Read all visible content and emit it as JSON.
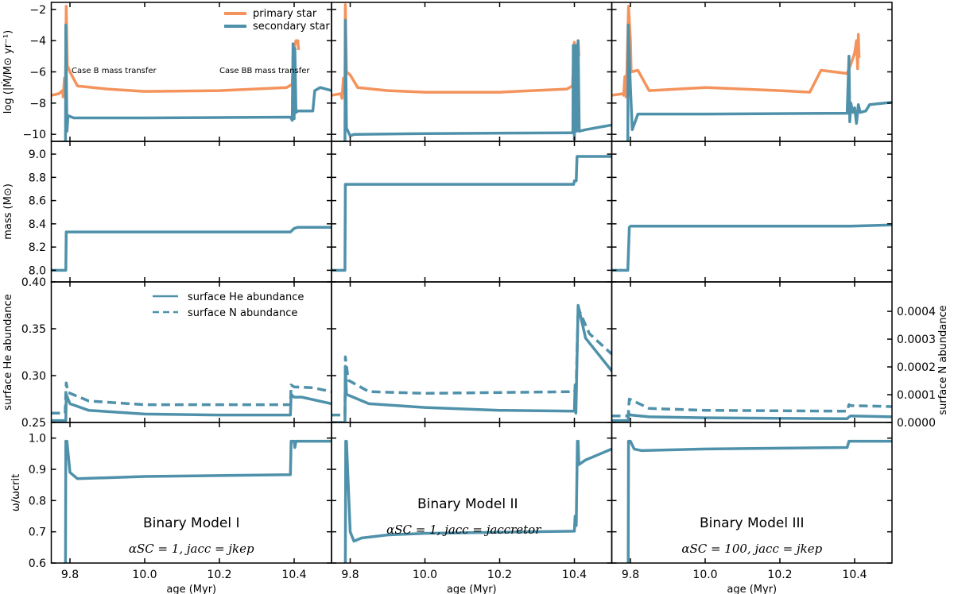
{
  "colors": {
    "primary": "#f4935c",
    "secondary": "#4f91aa"
  },
  "chart_data": {
    "type": "line",
    "layout": "4 rows x 3 columns, shared x axis",
    "xlabel": "age (Myr)",
    "xlim": [
      9.75,
      10.5
    ],
    "xticks": [
      9.8,
      10.0,
      10.2,
      10.4
    ],
    "xtick_labels": [
      "9.8",
      "10.0",
      "10.2",
      "10.4"
    ],
    "rows": [
      {
        "key": "mdot",
        "ylabel": "log (|Ṁ/M⊙ yr⁻¹)",
        "ylim": [
          -10.45,
          -1.55
        ],
        "yticks": [
          -2,
          -4,
          -6,
          -8,
          -10
        ],
        "ytick_labels": [
          "−2",
          "−4",
          "−6",
          "−8",
          "−10"
        ]
      },
      {
        "key": "mass",
        "ylabel": "mass (M⊙)",
        "ylim": [
          7.9,
          9.11
        ],
        "yticks": [
          8.0,
          8.2,
          8.4,
          8.6,
          8.8,
          9.0
        ],
        "ytick_labels": [
          "8.0",
          "8.2",
          "8.4",
          "8.6",
          "8.8",
          "9.0"
        ]
      },
      {
        "key": "abund",
        "ylabel": "surface He abundance",
        "ylim": [
          0.25,
          0.4
        ],
        "yticks": [
          0.25,
          0.3,
          0.35,
          0.4
        ],
        "ytick_labels": [
          "0.25",
          "0.30",
          "0.35",
          "0.40"
        ],
        "ylabel_right": "surface N abundance",
        "ylim_right": [
          0,
          0.000506
        ],
        "yticks_right": [
          0,
          0.0001,
          0.0002,
          0.0003,
          0.0004
        ],
        "ytick_labels_right": [
          "0.0000",
          "0.0001",
          "0.0002",
          "0.0003",
          "0.0004"
        ]
      },
      {
        "key": "omega",
        "ylabel": "ω/ωcrit",
        "ylim": [
          0.6,
          1.05
        ],
        "yticks": [
          0.6,
          0.7,
          0.8,
          0.9,
          1.0
        ],
        "ytick_labels": [
          "0.6",
          "0.7",
          "0.8",
          "0.9",
          "1.0"
        ]
      }
    ],
    "legend_mdot": {
      "position": "top-right",
      "primary": "primary star",
      "secondary": "secondary star"
    },
    "legend_abund": {
      "position": "top-right",
      "he": "surface He abundance",
      "n": "surface N abundance"
    },
    "annotations": [
      "Case B mass transfer",
      "Case BB mass transfer"
    ],
    "models": [
      {
        "title": "Binary Model I",
        "params": "αSC = 1, jacc = jkep",
        "mdot_primary": [
          [
            9.75,
            -7.5
          ],
          [
            9.77,
            -7.4
          ],
          [
            9.78,
            -7.2
          ],
          [
            9.782,
            -7.6
          ],
          [
            9.785,
            -6.4
          ],
          [
            9.788,
            -7.0
          ],
          [
            9.79,
            -1.8
          ],
          [
            9.793,
            -5.6
          ],
          [
            9.8,
            -6.0
          ],
          [
            9.82,
            -6.9
          ],
          [
            9.9,
            -7.1
          ],
          [
            10.0,
            -7.25
          ],
          [
            10.2,
            -7.2
          ],
          [
            10.38,
            -7.0
          ],
          [
            10.395,
            -6.8
          ],
          [
            10.398,
            -5.0
          ],
          [
            10.4,
            -4.5
          ],
          [
            10.405,
            -4.0
          ],
          [
            10.41,
            -4.0
          ],
          [
            10.412,
            -4.6
          ]
        ],
        "mdot_secondary": [
          [
            9.75,
            -10.5
          ],
          [
            9.788,
            -10.5
          ],
          [
            9.789,
            -3.0
          ],
          [
            9.792,
            -9.8
          ],
          [
            9.795,
            -8.8
          ],
          [
            9.81,
            -8.95
          ],
          [
            10.0,
            -8.95
          ],
          [
            10.39,
            -8.9
          ],
          [
            10.395,
            -9.1
          ],
          [
            10.397,
            -4.2
          ],
          [
            10.4,
            -9.0
          ],
          [
            10.402,
            -4.5
          ],
          [
            10.405,
            -8.6
          ],
          [
            10.41,
            -8.5
          ],
          [
            10.45,
            -8.5
          ],
          [
            10.455,
            -7.2
          ],
          [
            10.47,
            -7.0
          ],
          [
            10.5,
            -7.2
          ]
        ],
        "mass": [
          [
            9.75,
            8.0
          ],
          [
            9.789,
            8.0
          ],
          [
            9.79,
            8.33
          ],
          [
            10.39,
            8.33
          ],
          [
            10.4,
            8.36
          ],
          [
            10.41,
            8.37
          ],
          [
            10.5,
            8.37
          ]
        ],
        "he": [
          [
            9.75,
            0.252
          ],
          [
            9.789,
            0.252
          ],
          [
            9.79,
            0.28
          ],
          [
            9.8,
            0.27
          ],
          [
            9.85,
            0.263
          ],
          [
            10.0,
            0.259
          ],
          [
            10.2,
            0.258
          ],
          [
            10.39,
            0.258
          ],
          [
            10.392,
            0.28
          ],
          [
            10.4,
            0.277
          ],
          [
            10.42,
            0.277
          ],
          [
            10.5,
            0.27
          ]
        ],
        "n": [
          [
            9.75,
            3.37e-05
          ],
          [
            9.787,
            3.37e-05
          ],
          [
            9.79,
            0.000142
          ],
          [
            9.795,
            0.000108
          ],
          [
            9.85,
            7.76e-05
          ],
          [
            10.0,
            6.41e-05
          ],
          [
            10.39,
            6.41e-05
          ],
          [
            10.392,
            0.000135
          ],
          [
            10.4,
            0.000128
          ],
          [
            10.45,
            0.000125
          ],
          [
            10.5,
            0.000111
          ]
        ],
        "omega": [
          [
            9.788,
            0.6
          ],
          [
            9.789,
            0.99
          ],
          [
            9.792,
            0.99
          ],
          [
            9.8,
            0.89
          ],
          [
            9.82,
            0.87
          ],
          [
            10.0,
            0.877
          ],
          [
            10.39,
            0.883
          ],
          [
            10.392,
            0.99
          ],
          [
            10.4,
            0.99
          ],
          [
            10.402,
            0.97
          ],
          [
            10.405,
            0.99
          ],
          [
            10.5,
            0.99
          ]
        ]
      },
      {
        "title": "Binary Model II",
        "params": "αSC = 1, jacc = jaccretor",
        "mdot_primary": [
          [
            9.75,
            -7.5
          ],
          [
            9.775,
            -7.4
          ],
          [
            9.778,
            -7.7
          ],
          [
            9.782,
            -6.4
          ],
          [
            9.786,
            -6.6
          ],
          [
            9.787,
            -1.7
          ],
          [
            9.79,
            -6.0
          ],
          [
            9.8,
            -6.2
          ],
          [
            9.82,
            -7.0
          ],
          [
            9.9,
            -7.2
          ],
          [
            10.0,
            -7.3
          ],
          [
            10.2,
            -7.3
          ],
          [
            10.38,
            -7.1
          ],
          [
            10.395,
            -6.9
          ],
          [
            10.4,
            -4.1
          ],
          [
            10.405,
            -6.8
          ],
          [
            10.41,
            -4.0
          ],
          [
            10.412,
            -5.0
          ]
        ],
        "mdot_secondary": [
          [
            9.75,
            -10.5
          ],
          [
            9.786,
            -10.5
          ],
          [
            9.787,
            -2.7
          ],
          [
            9.79,
            -9.6
          ],
          [
            9.8,
            -10.1
          ],
          [
            9.81,
            -10.0
          ],
          [
            10.0,
            -9.95
          ],
          [
            10.39,
            -9.9
          ],
          [
            10.396,
            -9.9
          ],
          [
            10.397,
            -4.3
          ],
          [
            10.4,
            -10.3
          ],
          [
            10.403,
            -4.3
          ],
          [
            10.406,
            -9.8
          ],
          [
            10.41,
            -4.0
          ],
          [
            10.413,
            -9.8
          ],
          [
            10.43,
            -9.7
          ],
          [
            10.5,
            -9.4
          ]
        ],
        "mass": [
          [
            9.75,
            8.0
          ],
          [
            9.786,
            8.0
          ],
          [
            9.787,
            8.74
          ],
          [
            10.398,
            8.74
          ],
          [
            10.4,
            8.77
          ],
          [
            10.405,
            8.77
          ],
          [
            10.407,
            8.98
          ],
          [
            10.5,
            8.98
          ]
        ],
        "he": [
          [
            9.75,
            0.25
          ],
          [
            9.786,
            0.25
          ],
          [
            9.787,
            0.31
          ],
          [
            9.79,
            0.28
          ],
          [
            9.85,
            0.27
          ],
          [
            10.0,
            0.266
          ],
          [
            10.2,
            0.263
          ],
          [
            10.4,
            0.262
          ],
          [
            10.402,
            0.29
          ],
          [
            10.404,
            0.26
          ],
          [
            10.41,
            0.375
          ],
          [
            10.43,
            0.34
          ],
          [
            10.5,
            0.305
          ]
        ],
        "n": [
          [
            9.75,
            2.7e-05
          ],
          [
            9.786,
            2.7e-05
          ],
          [
            9.787,
            0.000236
          ],
          [
            9.795,
            0.000152
          ],
          [
            9.85,
            0.000111
          ],
          [
            10.0,
            0.000105
          ],
          [
            10.4,
            0.000111
          ],
          [
            10.405,
            0.000135
          ],
          [
            10.41,
            0.000412
          ],
          [
            10.44,
            0.00032
          ],
          [
            10.5,
            0.000246
          ]
        ],
        "omega": [
          [
            9.787,
            0.6
          ],
          [
            9.788,
            0.99
          ],
          [
            9.79,
            0.99
          ],
          [
            9.8,
            0.7
          ],
          [
            9.81,
            0.67
          ],
          [
            9.83,
            0.68
          ],
          [
            9.9,
            0.69
          ],
          [
            10.0,
            0.695
          ],
          [
            10.4,
            0.702
          ],
          [
            10.402,
            0.75
          ],
          [
            10.405,
            0.72
          ],
          [
            10.408,
            0.99
          ],
          [
            10.41,
            0.99
          ],
          [
            10.412,
            0.915
          ],
          [
            10.43,
            0.93
          ],
          [
            10.5,
            0.965
          ]
        ]
      },
      {
        "title": "Binary Model III",
        "params": "αSC = 100, jacc = jkep",
        "mdot_primary": [
          [
            9.75,
            -7.5
          ],
          [
            9.78,
            -7.4
          ],
          [
            9.782,
            -7.5
          ],
          [
            9.785,
            -6.3
          ],
          [
            9.788,
            -7.6
          ],
          [
            9.79,
            -6.5
          ],
          [
            9.795,
            -1.8
          ],
          [
            9.8,
            -4.0
          ],
          [
            9.802,
            -6.0
          ],
          [
            9.82,
            -5.9
          ],
          [
            9.85,
            -7.2
          ],
          [
            10.0,
            -7.0
          ],
          [
            10.2,
            -7.2
          ],
          [
            10.28,
            -7.3
          ],
          [
            10.31,
            -5.9
          ],
          [
            10.38,
            -6.1
          ],
          [
            10.39,
            -5.5
          ],
          [
            10.4,
            -4.8
          ],
          [
            10.405,
            -4.0
          ],
          [
            10.408,
            -5.8
          ],
          [
            10.41,
            -3.6
          ],
          [
            10.412,
            -5.1
          ]
        ],
        "mdot_secondary": [
          [
            9.75,
            -10.5
          ],
          [
            9.793,
            -10.5
          ],
          [
            9.794,
            -3.0
          ],
          [
            9.8,
            -7.0
          ],
          [
            9.805,
            -9.7
          ],
          [
            9.82,
            -8.7
          ],
          [
            10.0,
            -8.7
          ],
          [
            10.38,
            -8.65
          ],
          [
            10.385,
            -5.0
          ],
          [
            10.387,
            -9.2
          ],
          [
            10.39,
            -8.0
          ],
          [
            10.395,
            -8.6
          ],
          [
            10.4,
            -8.3
          ],
          [
            10.405,
            -9.3
          ],
          [
            10.41,
            -8.1
          ],
          [
            10.415,
            -8.6
          ],
          [
            10.43,
            -8.5
          ],
          [
            10.44,
            -8.1
          ],
          [
            10.5,
            -7.95
          ]
        ],
        "mass": [
          [
            9.75,
            8.0
          ],
          [
            9.793,
            8.0
          ],
          [
            9.797,
            8.37
          ],
          [
            9.8,
            8.38
          ],
          [
            10.39,
            8.38
          ],
          [
            10.5,
            8.39
          ]
        ],
        "he": [
          [
            9.75,
            0.252
          ],
          [
            9.794,
            0.252
          ],
          [
            9.795,
            0.26
          ],
          [
            9.8,
            0.258
          ],
          [
            9.85,
            0.256
          ],
          [
            10.0,
            0.255
          ],
          [
            10.38,
            0.254
          ],
          [
            10.385,
            0.256
          ],
          [
            10.39,
            0.257
          ],
          [
            10.5,
            0.256
          ]
        ],
        "n": [
          [
            9.75,
            2.36e-05
          ],
          [
            9.794,
            2.36e-05
          ],
          [
            9.797,
            8.43e-05
          ],
          [
            9.85,
            5.06e-05
          ],
          [
            10.0,
            4.38e-05
          ],
          [
            10.38,
            4.05e-05
          ],
          [
            10.385,
            6.41e-05
          ],
          [
            10.39,
            6.07e-05
          ],
          [
            10.5,
            5.73e-05
          ]
        ],
        "omega": [
          [
            9.794,
            0.6
          ],
          [
            9.795,
            0.99
          ],
          [
            9.8,
            0.99
          ],
          [
            9.81,
            0.965
          ],
          [
            9.83,
            0.96
          ],
          [
            10.0,
            0.965
          ],
          [
            10.38,
            0.97
          ],
          [
            10.385,
            0.99
          ],
          [
            10.5,
            0.99
          ]
        ]
      }
    ]
  }
}
